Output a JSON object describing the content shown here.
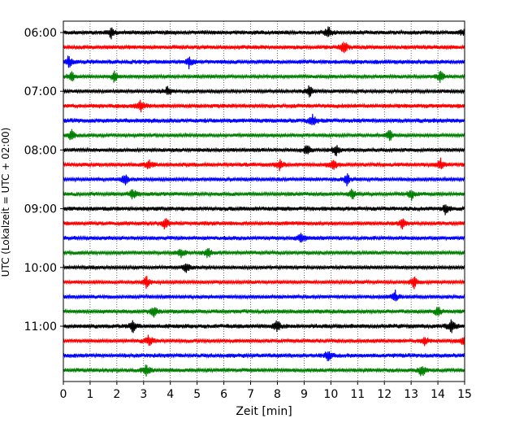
{
  "chart_data": {
    "type": "line",
    "title": "",
    "xlabel": "Zeit  [min]",
    "ylabel": "UTC (Lokalzeit = UTC + 02:00)",
    "xlim": [
      0,
      15
    ],
    "x_ticks": [
      "0",
      "1",
      "2",
      "3",
      "4",
      "5",
      "6",
      "7",
      "8",
      "9",
      "10",
      "11",
      "12",
      "13",
      "14",
      "15"
    ],
    "y_tick_labels": [
      "06:00",
      "07:00",
      "08:00",
      "09:00",
      "10:00",
      "11:00"
    ],
    "grid": "vertical dotted",
    "trace_interval_min": 15,
    "series_colors": [
      "#000000",
      "#ff0000",
      "#0000ff",
      "#008000"
    ],
    "traces": [
      {
        "start": "06:00",
        "events": [
          1.8,
          9.9,
          15.0
        ]
      },
      {
        "start": "06:15",
        "events": [
          10.5
        ]
      },
      {
        "start": "06:30",
        "events": [
          0.2,
          4.7
        ]
      },
      {
        "start": "06:45",
        "events": [
          0.3,
          1.9,
          14.1
        ]
      },
      {
        "start": "07:00",
        "events": [
          3.9,
          9.2
        ]
      },
      {
        "start": "07:15",
        "events": [
          2.9
        ]
      },
      {
        "start": "07:30",
        "events": [
          9.3
        ]
      },
      {
        "start": "07:45",
        "events": [
          0.3,
          12.2
        ]
      },
      {
        "start": "08:00",
        "events": [
          9.1,
          10.2
        ]
      },
      {
        "start": "08:15",
        "events": [
          3.2,
          8.1,
          10.1,
          14.1
        ]
      },
      {
        "start": "08:30",
        "events": [
          2.3,
          10.6
        ]
      },
      {
        "start": "08:45",
        "events": [
          2.6,
          10.8,
          13.0
        ]
      },
      {
        "start": "09:00",
        "events": [
          14.3
        ]
      },
      {
        "start": "09:15",
        "events": [
          3.8,
          12.7
        ]
      },
      {
        "start": "09:30",
        "events": [
          8.9
        ]
      },
      {
        "start": "09:45",
        "events": [
          4.4,
          5.4
        ]
      },
      {
        "start": "10:00",
        "events": [
          4.6
        ]
      },
      {
        "start": "10:15",
        "events": [
          3.1,
          13.1
        ]
      },
      {
        "start": "10:30",
        "events": [
          12.4
        ]
      },
      {
        "start": "10:45",
        "events": [
          3.4,
          14.0
        ]
      },
      {
        "start": "11:00",
        "events": [
          2.6,
          8.0,
          14.5
        ]
      },
      {
        "start": "11:15",
        "events": [
          3.2,
          13.5,
          15.0
        ]
      },
      {
        "start": "11:30",
        "events": [
          9.9
        ]
      },
      {
        "start": "11:45",
        "events": [
          3.1,
          13.4
        ]
      }
    ]
  }
}
